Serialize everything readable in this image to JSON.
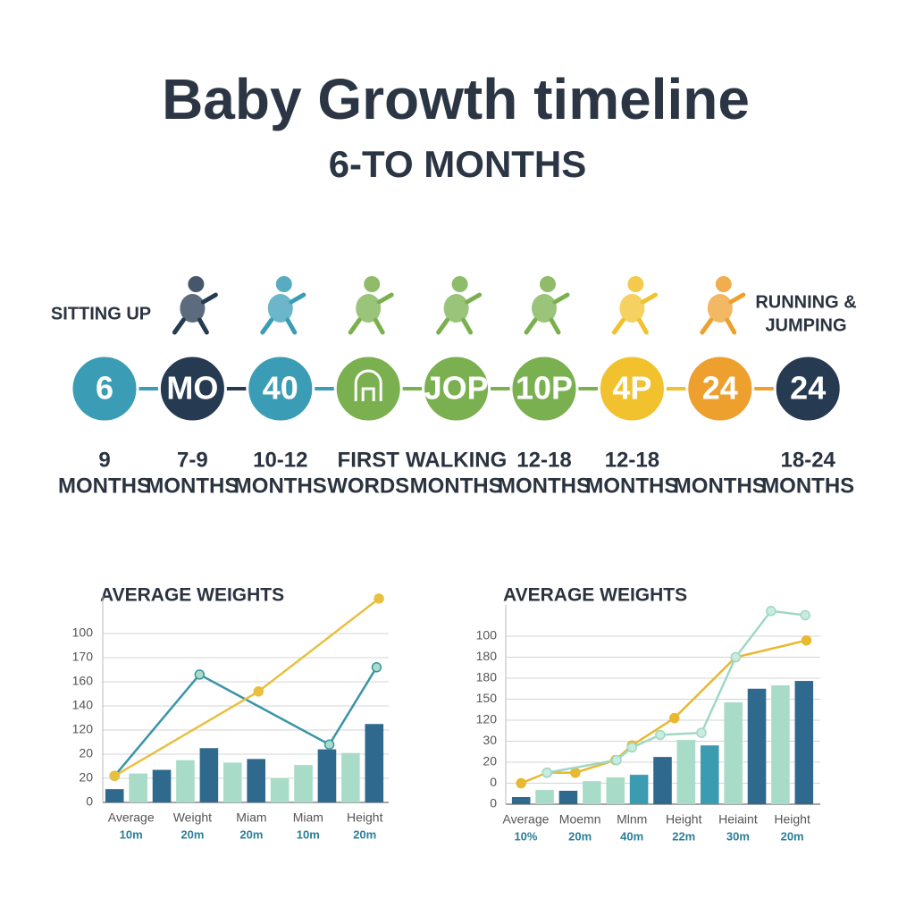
{
  "header": {
    "title": "Baby Growth timeline",
    "subtitle": "6-TO MONTHS"
  },
  "timeline": {
    "nodes": [
      {
        "label": "6",
        "color": "#3a9db5",
        "top_label": [
          "SITTING UP"
        ],
        "bottom_label": [
          "9",
          "MONTHS"
        ]
      },
      {
        "label": "MO",
        "color": "#263a52",
        "bottom_label": [
          "7-9",
          "MONTHS"
        ]
      },
      {
        "label": "40",
        "color": "#3a9db5",
        "bottom_label": [
          "10-12",
          "MONTHS"
        ]
      },
      {
        "color": "#7ab04f",
        "bottom_label": [
          "FIRST",
          "WORDS"
        ]
      },
      {
        "label": "JOP",
        "color": "#7ab04f",
        "bottom_label": [
          "WALKING",
          "MONTHS"
        ]
      },
      {
        "label": "10P",
        "color": "#7ab04f",
        "bottom_label": [
          "12-18",
          "MONTHS"
        ]
      },
      {
        "label": "4P",
        "color": "#f2c12e",
        "bottom_label": [
          "12-18",
          "MONTHS"
        ]
      },
      {
        "label": "24",
        "color": "#eea02f",
        "bottom_label": [
          "MONTHS"
        ]
      },
      {
        "label": "24",
        "color": "#263a52",
        "top_label": [
          "RUNNING &",
          "JUMPING"
        ],
        "bottom_label": [
          "18-24",
          "MONTHS"
        ]
      }
    ]
  },
  "chart_data": [
    {
      "type": "combo",
      "title": "AVERAGE WEIGHTS",
      "ylim": [
        0,
        8.6
      ],
      "yticks": [
        {
          "value": 0,
          "label": "0"
        },
        {
          "value": 1,
          "label": "20"
        },
        {
          "value": 2,
          "label": "20"
        },
        {
          "value": 3,
          "label": "120"
        },
        {
          "value": 4,
          "label": "140"
        },
        {
          "value": 5,
          "label": "160"
        },
        {
          "value": 6,
          "label": "170"
        },
        {
          "value": 7,
          "label": "100"
        }
      ],
      "xlim": [
        -0.5,
        11.5
      ],
      "xticks": [
        {
          "value": 0.7,
          "label": "Average",
          "sublabel": "10m"
        },
        {
          "value": 3.3,
          "label": "Weight",
          "sublabel": "20m"
        },
        {
          "value": 5.8,
          "label": "Miam",
          "sublabel": "20m"
        },
        {
          "value": 8.2,
          "label": "Miam",
          "sublabel": "10m"
        },
        {
          "value": 10.6,
          "label": "Height",
          "sublabel": "20m"
        }
      ],
      "bars": {
        "values": [
          0.55,
          1.2,
          1.35,
          1.75,
          2.25,
          1.65,
          1.8,
          1.0,
          1.55,
          2.2,
          2.05,
          3.25
        ],
        "colors": [
          "#2f6a8e",
          "#a8dcc8",
          "#2f6a8e",
          "#a8dcc8",
          "#2f6a8e",
          "#a8dcc8",
          "#2f6a8e",
          "#a8dcc8",
          "#a8dcc8",
          "#2f6a8e",
          "#a8dcc8",
          "#2f6a8e"
        ]
      },
      "series": [
        {
          "color": "#3a95a5",
          "marker_fill": "#a8dcc8",
          "x": [
            0,
            3.6,
            9.1,
            11.1
          ],
          "values": [
            1.1,
            5.3,
            2.4,
            5.6
          ]
        },
        {
          "color": "#e8c040",
          "marker_fill": "#e8c040",
          "x": [
            0,
            6.1,
            11.2
          ],
          "values": [
            1.1,
            4.6,
            8.45
          ]
        }
      ]
    },
    {
      "type": "combo",
      "title": "AVERAGE WEIGHTS",
      "ylim": [
        0,
        9.5
      ],
      "yticks": [
        {
          "value": 0,
          "label": "0"
        },
        {
          "value": 1,
          "label": "0"
        },
        {
          "value": 2,
          "label": "20"
        },
        {
          "value": 3,
          "label": "30"
        },
        {
          "value": 4,
          "label": "120"
        },
        {
          "value": 5,
          "label": "150"
        },
        {
          "value": 6,
          "label": "180"
        },
        {
          "value": 7,
          "label": "180"
        },
        {
          "value": 8,
          "label": "100"
        }
      ],
      "xlim": [
        -0.5,
        12.5
      ],
      "xticks": [
        {
          "value": 0.2,
          "label": "Average",
          "sublabel": "10%"
        },
        {
          "value": 2.5,
          "label": "Moemn",
          "sublabel": "20m"
        },
        {
          "value": 4.7,
          "label": "Mlnm",
          "sublabel": "40m"
        },
        {
          "value": 6.9,
          "label": "Height",
          "sublabel": "22m"
        },
        {
          "value": 9.2,
          "label": "Heiaint",
          "sublabel": "30m"
        },
        {
          "value": 11.5,
          "label": "Height",
          "sublabel": "20m"
        }
      ],
      "bars": {
        "values": [
          0.34,
          0.68,
          0.64,
          1.1,
          1.28,
          1.4,
          2.25,
          3.06,
          2.8,
          4.85,
          5.5,
          5.66,
          5.87
        ],
        "colors": [
          "#2f6a8e",
          "#a8dcc8",
          "#2f6a8e",
          "#a8dcc8",
          "#a8dcc8",
          "#3b9bb0",
          "#2f6a8e",
          "#a8dcc8",
          "#3b9bb0",
          "#a8dcc8",
          "#2f6a8e",
          "#a8dcc8",
          "#2f6a8e"
        ]
      },
      "series": [
        {
          "color": "#e8b830",
          "marker_fill": "#e8b830",
          "x": [
            0,
            1.1,
            2.3,
            4.0,
            4.7,
            6.5,
            9.1,
            12.1
          ],
          "values": [
            1.0,
            1.5,
            1.5,
            2.1,
            2.8,
            4.1,
            7.0,
            7.8
          ]
        },
        {
          "color": "#9fd8c4",
          "marker_fill": "#c8ece0",
          "x": [
            1.1,
            4.05,
            4.7,
            5.9,
            7.65,
            9.1,
            10.6,
            12.05
          ],
          "values": [
            1.5,
            2.1,
            2.7,
            3.3,
            3.4,
            7.0,
            9.2,
            9.0
          ]
        }
      ]
    }
  ]
}
